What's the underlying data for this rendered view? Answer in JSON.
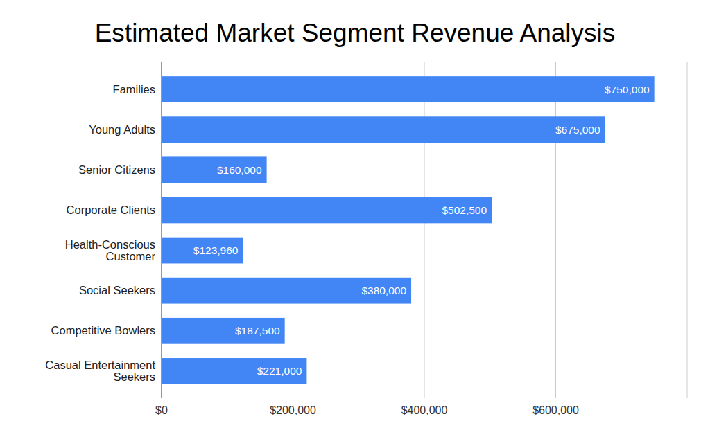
{
  "chart_data": {
    "type": "bar",
    "orientation": "horizontal",
    "title": "Estimated Market Segment Revenue Analysis",
    "categories": [
      "Families",
      "Young Adults",
      "Senior Citizens",
      "Corporate Clients",
      "Health-Conscious Customer",
      "Social Seekers",
      "Competitive Bowlers",
      "Casual Entertainment Seekers"
    ],
    "values": [
      750000,
      675000,
      160000,
      502500,
      123960,
      380000,
      187500,
      221000
    ],
    "value_labels": [
      "$750,000",
      "$675,000",
      "$160,000",
      "$502,500",
      "$123,960",
      "$380,000",
      "$187,500",
      "$221,000"
    ],
    "color": "#4285f4",
    "xlim": [
      0,
      800000
    ],
    "xticks": [
      {
        "value": 0,
        "label": "$0"
      },
      {
        "value": 200000,
        "label": "$200,000"
      },
      {
        "value": 400000,
        "label": "$400,000"
      },
      {
        "value": 600000,
        "label": "$600,000"
      }
    ],
    "grid": true,
    "data_labels": true
  }
}
